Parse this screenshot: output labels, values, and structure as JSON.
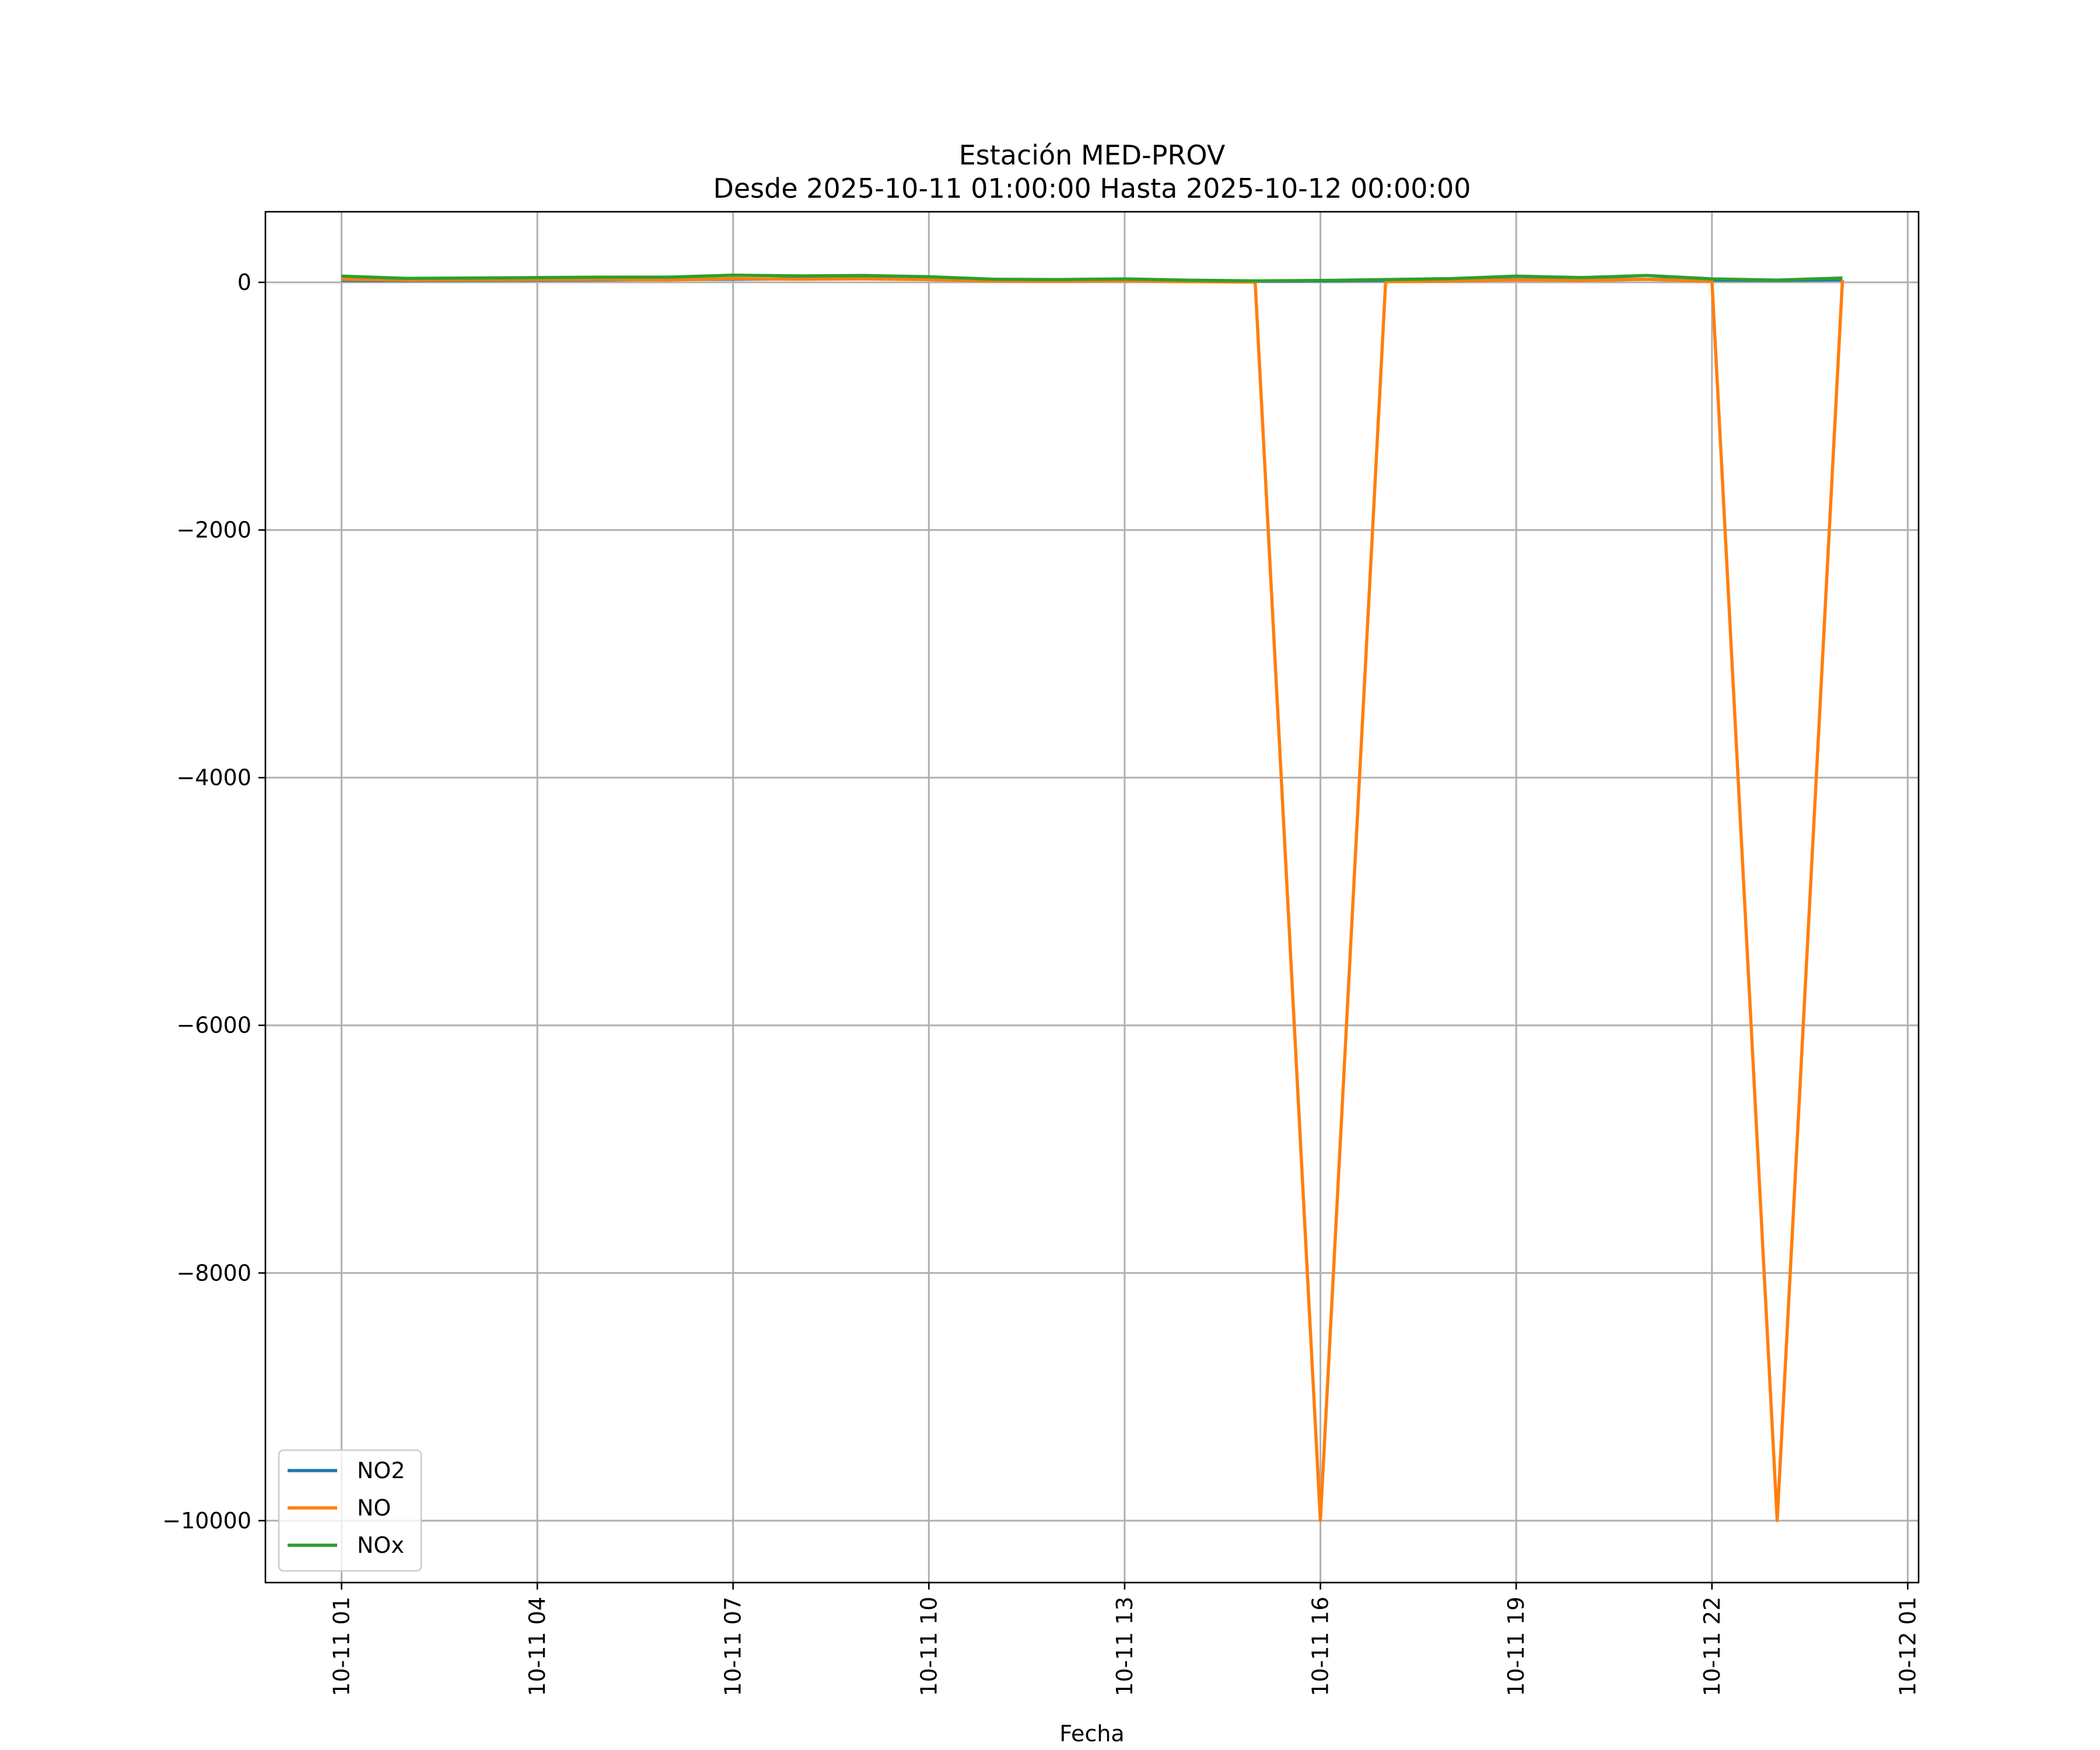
{
  "chart_data": {
    "type": "line",
    "title": "Estación MED-PROV",
    "subtitle": "Desde 2025-10-11 01:00:00 Hasta 2025-10-12 00:00:00",
    "xlabel": "Fecha",
    "ylabel": "",
    "x": [
      "2025-10-11 01:00",
      "2025-10-11 02:00",
      "2025-10-11 03:00",
      "2025-10-11 04:00",
      "2025-10-11 05:00",
      "2025-10-11 06:00",
      "2025-10-11 07:00",
      "2025-10-11 08:00",
      "2025-10-11 09:00",
      "2025-10-11 10:00",
      "2025-10-11 11:00",
      "2025-10-11 12:00",
      "2025-10-11 13:00",
      "2025-10-11 14:00",
      "2025-10-11 15:00",
      "2025-10-11 16:00",
      "2025-10-11 17:00",
      "2025-10-11 18:00",
      "2025-10-11 19:00",
      "2025-10-11 20:00",
      "2025-10-11 21:00",
      "2025-10-11 22:00",
      "2025-10-11 23:00",
      "2025-10-12 00:00"
    ],
    "xlim": [
      "2025-10-10 23:50",
      "2025-10-12 01:10"
    ],
    "ylim": [
      -10500,
      570
    ],
    "x_ticks": [
      "10-11 01",
      "10-11 04",
      "10-11 07",
      "10-11 10",
      "10-11 13",
      "10-11 16",
      "10-11 19",
      "10-11 22",
      "10-12 01"
    ],
    "y_ticks": [
      0,
      -2000,
      -4000,
      -6000,
      -8000,
      -10000
    ],
    "y_tick_labels": [
      "0",
      "−2000",
      "−4000",
      "−6000",
      "−8000",
      "−10000"
    ],
    "grid": true,
    "legend_position": "lower-left",
    "series": [
      {
        "name": "NO2",
        "color": "#1f77b4",
        "values": [
          15,
          14,
          16,
          18,
          20,
          22,
          25,
          28,
          30,
          25,
          18,
          16,
          15,
          12,
          10,
          12,
          15,
          18,
          22,
          20,
          25,
          18,
          15,
          20
        ]
      },
      {
        "name": "NO",
        "color": "#ff7f0e",
        "values": [
          25,
          18,
          20,
          22,
          24,
          20,
          30,
          25,
          28,
          22,
          10,
          8,
          12,
          5,
          2,
          -9999,
          5,
          10,
          20,
          15,
          25,
          8,
          -9999,
          20
        ]
      },
      {
        "name": "NOx",
        "color": "#2ca02c",
        "values": [
          50,
          32,
          35,
          38,
          42,
          42,
          58,
          52,
          55,
          45,
          25,
          22,
          28,
          17,
          12,
          15,
          22,
          30,
          50,
          38,
          55,
          28,
          18,
          35
        ]
      }
    ]
  }
}
